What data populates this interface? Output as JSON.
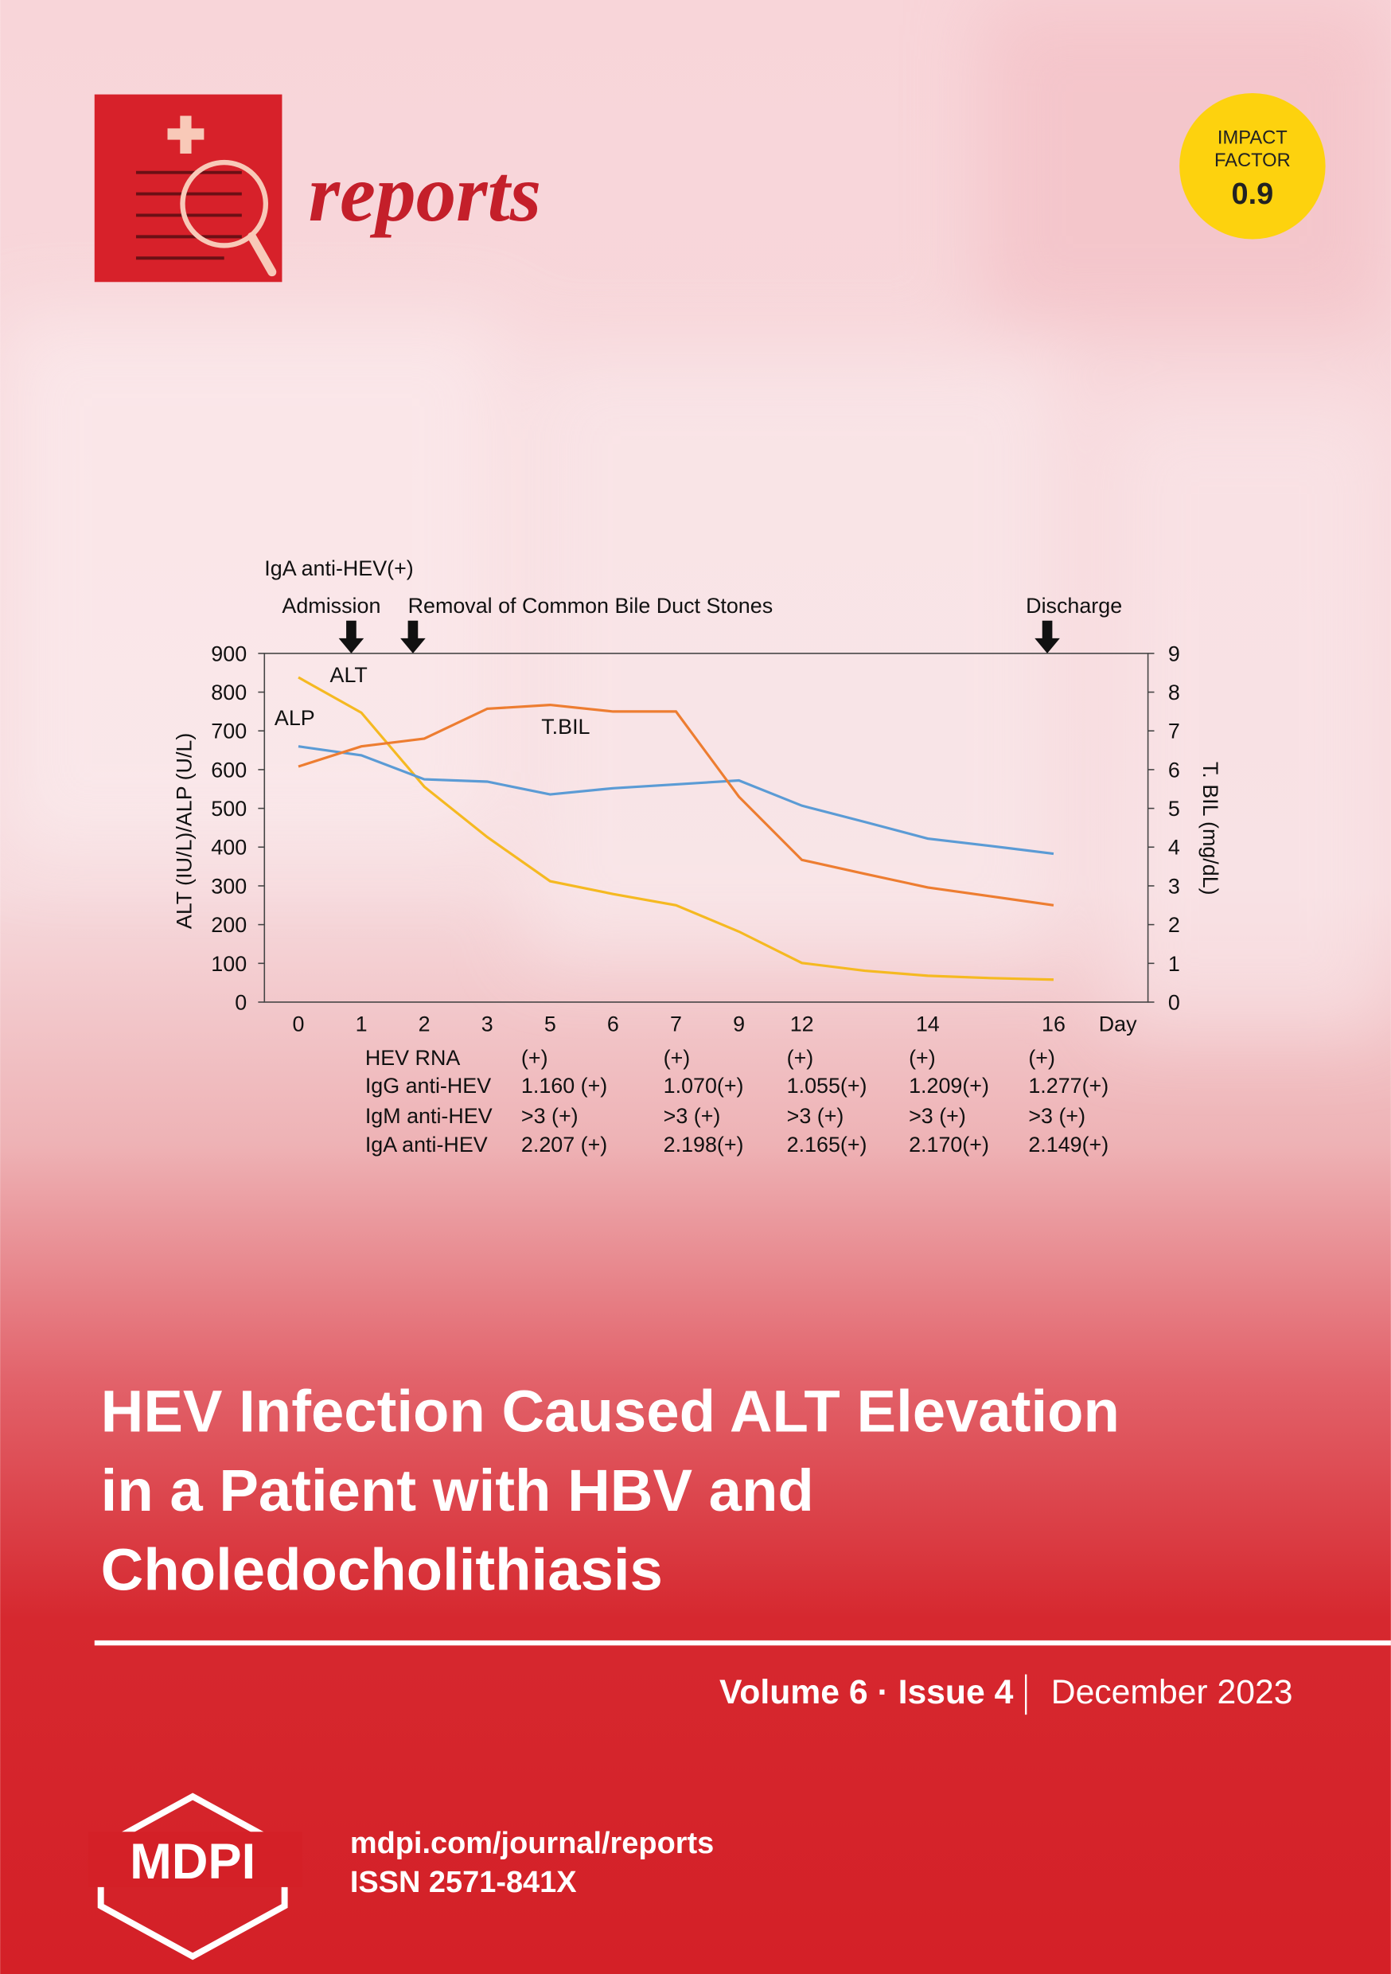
{
  "journal": {
    "name": "reports"
  },
  "impact_factor": {
    "line1": "IMPACT",
    "line2": "FACTOR",
    "value": "0.9"
  },
  "chart_data": {
    "type": "line",
    "annotations": [
      "IgA anti-HEV(+)",
      "Admission",
      "Removal of Common Bile Duct Stones",
      "Discharge"
    ],
    "x_label": "Day",
    "y_label": "ALT (IU/L)/ALP (U/L)",
    "y2_label": "T. BIL (mg/dL)",
    "categories": [
      "0",
      "1",
      "2",
      "3",
      "5",
      "6",
      "7",
      "9",
      "12",
      null,
      "14",
      null,
      "16"
    ],
    "series": [
      {
        "name": "ALT",
        "color": "#f5b921",
        "values": [
          838,
          747,
          556,
          426,
          312,
          279,
          250,
          182,
          101,
          81,
          68,
          62,
          58
        ]
      },
      {
        "name": "ALP",
        "color": "#5b9bd5",
        "values": [
          660,
          637,
          575,
          569,
          536,
          552,
          562,
          572,
          507,
          465,
          422,
          403,
          383
        ]
      },
      {
        "name": "T.BIL",
        "color": "#ed7d31",
        "axis": "y2",
        "values": [
          6.08,
          6.6,
          6.8,
          7.57,
          7.67,
          7.5,
          7.5,
          5.3,
          3.67,
          3.31,
          2.96,
          2.73,
          2.5
        ]
      }
    ],
    "ylim": [
      0,
      900
    ],
    "yticks": [
      0,
      100,
      200,
      300,
      400,
      500,
      600,
      700,
      800,
      900
    ],
    "y2lim": [
      0,
      9
    ],
    "y2ticks": [
      0,
      1,
      2,
      3,
      4,
      5,
      6,
      7,
      8,
      9
    ]
  },
  "lab_table": {
    "rows": [
      {
        "label": "HEV RNA",
        "cells": [
          "(+)",
          "(+)",
          "(+)",
          "(+)",
          "(+)"
        ]
      },
      {
        "label": "IgG anti-HEV",
        "cells": [
          "1.160 (+)",
          "1.070(+)",
          "1.055(+)",
          "1.209(+)",
          "1.277(+)"
        ]
      },
      {
        "label": "IgM anti-HEV",
        "cells": [
          ">3 (+)",
          ">3 (+)",
          ">3 (+)",
          ">3 (+)",
          ">3 (+)"
        ]
      },
      {
        "label": "IgA anti-HEV",
        "cells": [
          "2.207 (+)",
          "2.198(+)",
          "2.165(+)",
          "2.170(+)",
          "2.149(+)"
        ]
      }
    ]
  },
  "cover": {
    "title_lines": [
      "HEV Infection Caused ALT Elevation",
      "in a Patient with HBV and",
      "Choledocholithiasis"
    ],
    "volume": "Volume 6",
    "separator": "·",
    "issue": "Issue 4",
    "date": "December 2023",
    "publisher": "MDPI",
    "url": "mdpi.com/journal/reports",
    "issn": "ISSN 2571-841X"
  }
}
